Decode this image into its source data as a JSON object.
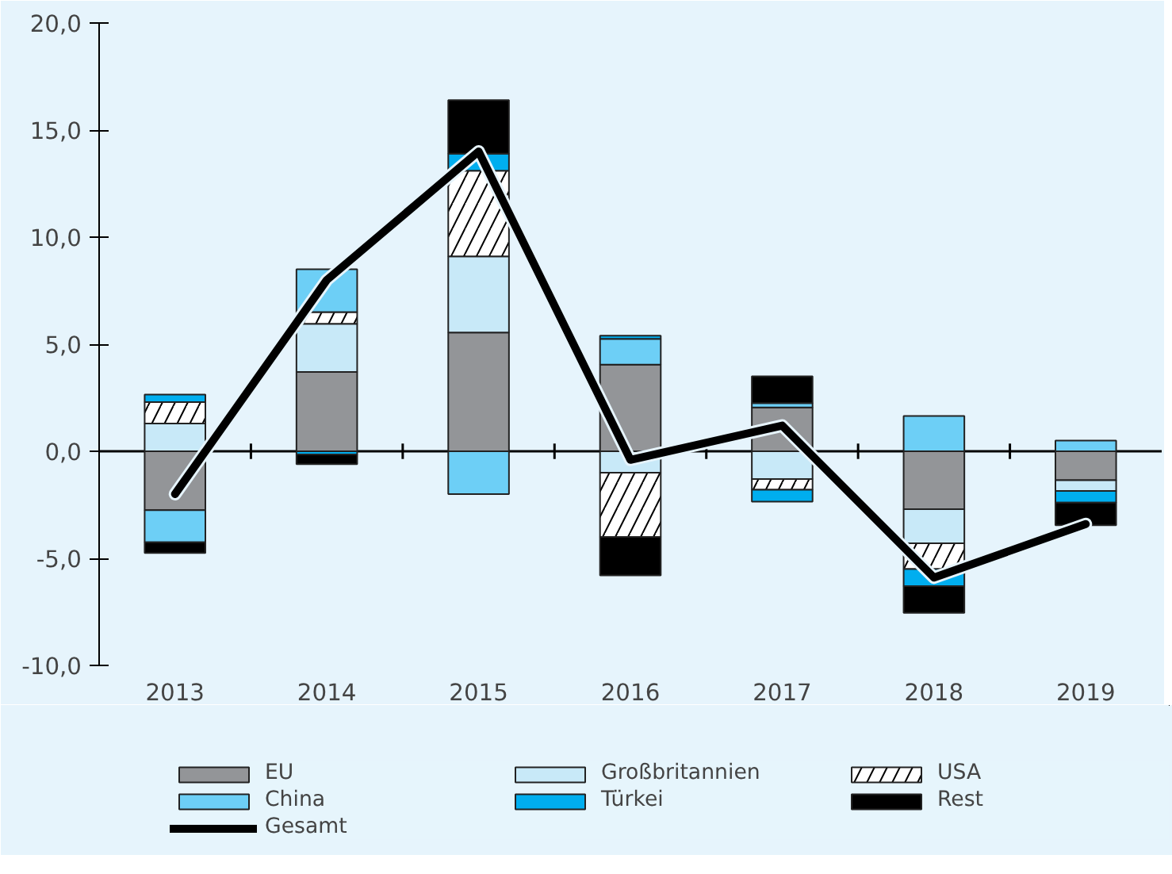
{
  "chart_data": {
    "type": "bar",
    "stacked": true,
    "categories": [
      "2013",
      "2014",
      "2015",
      "2016",
      "2017",
      "2018",
      "2019"
    ],
    "series": [
      {
        "name": "EU",
        "color": "#939598",
        "values": [
          -2.75,
          3.7,
          5.55,
          4.05,
          2.05,
          -2.7,
          -1.35
        ]
      },
      {
        "name": "Großbritannien",
        "color": "#c8e9f8",
        "values": [
          1.3,
          2.25,
          3.55,
          -1.0,
          -1.3,
          -1.6,
          -0.5
        ]
      },
      {
        "name": "USA",
        "color": "#ffffff",
        "values": [
          1.0,
          0.55,
          4.0,
          -3.0,
          -0.5,
          -1.2,
          0
        ]
      },
      {
        "name": "China",
        "color": "#6dcff6",
        "values": [
          -1.5,
          2.0,
          -2.0,
          1.2,
          0.2,
          1.65,
          0.5
        ]
      },
      {
        "name": "Türkei",
        "color": "#00aeef",
        "values": [
          0.35,
          -0.15,
          0.8,
          0.15,
          -0.55,
          -0.8,
          -0.55
        ]
      },
      {
        "name": "Rest",
        "color": "#000000",
        "values": [
          -0.5,
          -0.45,
          2.5,
          -1.8,
          1.25,
          -1.25,
          -1.05
        ]
      },
      {
        "name": "Gesamt",
        "type": "line",
        "color": "#000000",
        "values": [
          -2.0,
          8.0,
          14.0,
          -0.4,
          1.2,
          -5.9,
          -3.4
        ]
      }
    ],
    "ylim": [
      -10,
      20
    ],
    "yticks": [
      {
        "value": -10,
        "label": "-10,0"
      },
      {
        "value": -5,
        "label": "-5,0"
      },
      {
        "value": 0,
        "label": "0,0"
      },
      {
        "value": 5,
        "label": "5,0"
      },
      {
        "value": 10,
        "label": "10,0"
      },
      {
        "value": 15,
        "label": "15,0"
      },
      {
        "value": 20,
        "label": "20,0"
      }
    ],
    "legend": "bottom"
  }
}
